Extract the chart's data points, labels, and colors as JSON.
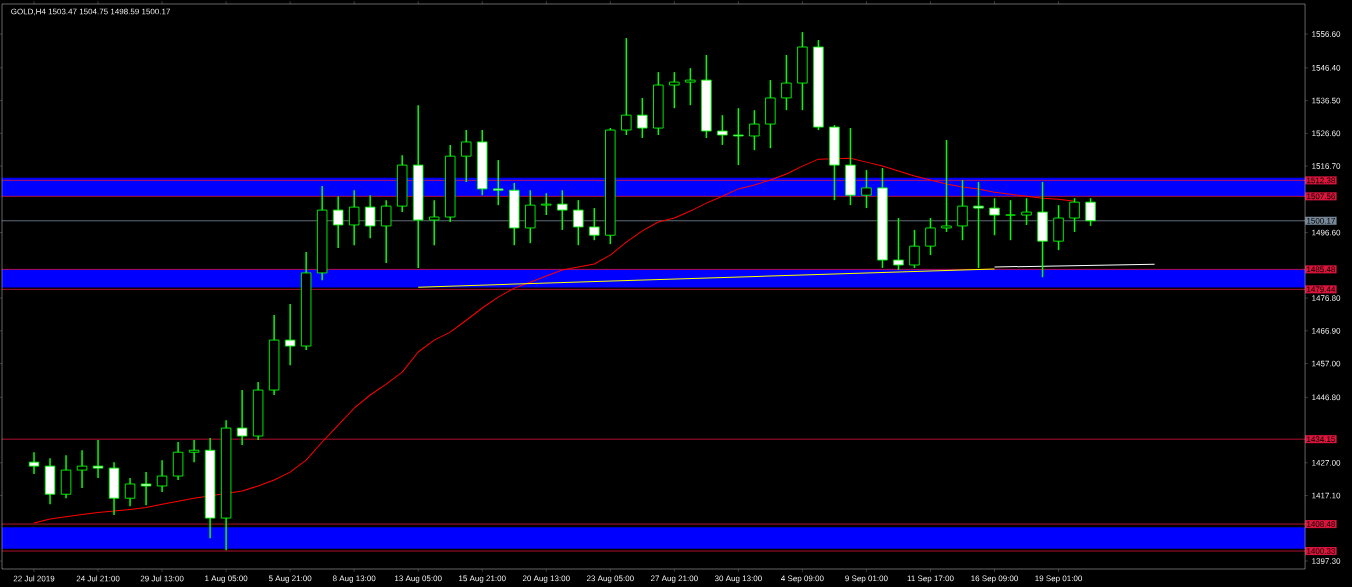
{
  "chart_data": {
    "type": "candlestick",
    "title": "GOLD,H4 1503.47 1504.75 1498.59 1500.17",
    "color": "#00ff00",
    "categories": [
      "22 Jul 2019",
      null,
      null,
      null,
      "24 Jul 21:00",
      null,
      null,
      null,
      "29 Jul 13:00",
      null,
      null,
      null,
      "1 Aug 05:00",
      null,
      null,
      null,
      "5 Aug 21:00",
      null,
      null,
      null,
      "8 Aug 13:00",
      null,
      null,
      null,
      "13 Aug 05:00",
      null,
      null,
      null,
      "15 Aug 21:00",
      null,
      null,
      null,
      "20 Aug 13:00",
      null,
      null,
      null,
      "23 Aug 05:00",
      null,
      null,
      null,
      "27 Aug 21:00",
      null,
      null,
      null,
      "30 Aug 13:00",
      null,
      null,
      null,
      "4 Sep 09:00",
      null,
      null,
      null,
      "9 Sep 01:00",
      null,
      null,
      null,
      "11 Sep 17:00",
      null,
      null,
      null,
      "16 Sep 09:00",
      null,
      null,
      null,
      "19 Sep 01:00",
      null,
      null,
      null,
      null,
      null,
      null,
      null,
      null,
      null,
      null,
      null,
      null,
      null,
      null
    ],
    "ohlc": [
      [
        1427.2,
        1430.2,
        1423.6,
        1426.0
      ],
      [
        1426.0,
        1428.4,
        1414.5,
        1417.5
      ],
      [
        1417.5,
        1429.3,
        1416.3,
        1424.8
      ],
      [
        1424.8,
        1430.8,
        1419.4,
        1426.0
      ],
      [
        1426.0,
        1433.9,
        1422.4,
        1425.4
      ],
      [
        1425.4,
        1427.2,
        1411.2,
        1416.3
      ],
      [
        1416.3,
        1422.4,
        1413.9,
        1420.6
      ],
      [
        1420.6,
        1424.2,
        1414.2,
        1420.0
      ],
      [
        1420.0,
        1427.8,
        1418.2,
        1423.0
      ],
      [
        1423.0,
        1433.3,
        1421.8,
        1430.2
      ],
      [
        1430.2,
        1433.9,
        1427.2,
        1430.8
      ],
      [
        1430.8,
        1434.5,
        1404.2,
        1410.3
      ],
      [
        1410.3,
        1439.9,
        1400.6,
        1437.5
      ],
      [
        1437.5,
        1449.0,
        1432.4,
        1435.1
      ],
      [
        1435.1,
        1451.4,
        1433.9,
        1449.0
      ],
      [
        1449.0,
        1471.7,
        1447.5,
        1464.1
      ],
      [
        1464.1,
        1475.0,
        1456.5,
        1462.3
      ],
      [
        1462.3,
        1490.7,
        1461.1,
        1484.4
      ],
      [
        1484.4,
        1510.7,
        1482.2,
        1503.4
      ],
      [
        1503.4,
        1507.6,
        1491.9,
        1498.9
      ],
      [
        1498.9,
        1509.4,
        1492.8,
        1504.3
      ],
      [
        1504.3,
        1507.9,
        1494.9,
        1498.6
      ],
      [
        1498.6,
        1506.4,
        1487.4,
        1504.6
      ],
      [
        1504.6,
        1520.0,
        1502.8,
        1517.0
      ],
      [
        1517.0,
        1535.1,
        1485.9,
        1500.4
      ],
      [
        1500.4,
        1506.4,
        1492.8,
        1501.3
      ],
      [
        1501.3,
        1523.1,
        1499.8,
        1519.7
      ],
      [
        1519.7,
        1527.6,
        1511.9,
        1524.0
      ],
      [
        1524.0,
        1527.6,
        1507.9,
        1509.8
      ],
      [
        1509.8,
        1518.5,
        1504.9,
        1509.4
      ],
      [
        1509.4,
        1511.6,
        1492.8,
        1498.0
      ],
      [
        1498.0,
        1509.4,
        1493.4,
        1504.9
      ],
      [
        1504.9,
        1508.5,
        1501.9,
        1505.2
      ],
      [
        1505.2,
        1509.4,
        1497.4,
        1503.4
      ],
      [
        1503.4,
        1506.4,
        1492.8,
        1498.3
      ],
      [
        1498.3,
        1504.0,
        1494.3,
        1495.8
      ],
      [
        1495.8,
        1528.2,
        1493.1,
        1527.6
      ],
      [
        1527.6,
        1555.4,
        1526.1,
        1532.1
      ],
      [
        1532.1,
        1537.3,
        1525.2,
        1528.2
      ],
      [
        1528.2,
        1545.1,
        1526.1,
        1541.2
      ],
      [
        1541.2,
        1545.1,
        1534.2,
        1542.1
      ],
      [
        1542.1,
        1546.3,
        1535.1,
        1542.7
      ],
      [
        1542.7,
        1550.3,
        1525.2,
        1527.3
      ],
      [
        1527.3,
        1532.1,
        1523.1,
        1526.1
      ],
      [
        1526.1,
        1534.2,
        1517.0,
        1525.8
      ],
      [
        1525.8,
        1533.6,
        1521.5,
        1529.4
      ],
      [
        1529.4,
        1542.7,
        1522.1,
        1537.3
      ],
      [
        1537.3,
        1550.3,
        1533.6,
        1541.8
      ],
      [
        1541.8,
        1557.2,
        1533.6,
        1552.7
      ],
      [
        1552.7,
        1554.8,
        1527.6,
        1528.5
      ],
      [
        1528.5,
        1529.1,
        1506.4,
        1517.0
      ],
      [
        1517.0,
        1528.2,
        1504.9,
        1507.9
      ],
      [
        1507.9,
        1515.5,
        1504.0,
        1510.1
      ],
      [
        1510.1,
        1516.1,
        1485.9,
        1488.3
      ],
      [
        1488.3,
        1501.0,
        1485.3,
        1486.8
      ],
      [
        1486.8,
        1497.4,
        1485.9,
        1492.5
      ],
      [
        1492.5,
        1501.0,
        1489.8,
        1498.0
      ],
      [
        1498.0,
        1524.6,
        1496.8,
        1498.6
      ],
      [
        1498.6,
        1512.5,
        1494.3,
        1504.6
      ],
      [
        1504.6,
        1511.9,
        1485.9,
        1504.0
      ],
      [
        1504.0,
        1507.0,
        1495.8,
        1501.9
      ],
      [
        1501.9,
        1506.4,
        1494.3,
        1501.9
      ],
      [
        1501.9,
        1507.0,
        1498.9,
        1502.8
      ],
      [
        1502.8,
        1511.9,
        1483.1,
        1494.0
      ],
      [
        1494.0,
        1504.9,
        1491.3,
        1501.0
      ],
      [
        1501.0,
        1507.0,
        1496.8,
        1505.8
      ],
      [
        1505.8,
        1507.0,
        1498.6,
        1500.17
      ],
      null,
      null,
      null,
      null,
      null,
      null,
      null,
      null,
      null,
      null,
      null,
      null
    ],
    "series": [
      {
        "type": "line",
        "color": "#ff0000",
        "values": [
          1408.8,
          1410.0,
          1410.7,
          1411.4,
          1412.0,
          1412.4,
          1412.9,
          1413.5,
          1414.5,
          1415.4,
          1416.3,
          null,
          null,
          1418.5,
          1420.0,
          1421.8,
          1424.2,
          1427.8,
          1433.3,
          1438.4,
          1443.5,
          1447.5,
          1450.8,
          1454.4,
          1460.5,
          1464.1,
          1466.5,
          1470.1,
          1473.8,
          1477.1,
          1479.8,
          1481.6,
          1483.5,
          1485.3,
          1486.2,
          1487.1,
          1489.8,
          1493.7,
          1497.1,
          1499.8,
          1501.0,
          1503.1,
          1505.5,
          1507.6,
          1509.8,
          1511.0,
          1512.5,
          1514.3,
          1516.7,
          1518.8,
          null,
          1519.1,
          1517.9,
          1516.7,
          1515.2,
          1513.7,
          1512.5,
          1511.3,
          1510.4,
          1509.8,
          1508.8,
          1508.2,
          1507.6,
          1507.0,
          1506.7,
          1506.1,
          null,
          null,
          null,
          null,
          null,
          null,
          null,
          null,
          null,
          null,
          null,
          null,
          null
        ]
      },
      {
        "type": "line",
        "color": "#ffff00",
        "values": [
          null,
          null,
          null,
          null,
          null,
          null,
          null,
          null,
          null,
          null,
          null,
          null,
          null,
          null,
          null,
          null,
          null,
          null,
          null,
          null,
          null,
          null,
          null,
          null,
          1480.1,
          null,
          null,
          null,
          null,
          null,
          null,
          null,
          null,
          null,
          null,
          null,
          null,
          null,
          null,
          null,
          null,
          null,
          null,
          null,
          null,
          null,
          null,
          null,
          null,
          null,
          null,
          null,
          null,
          null,
          null,
          null,
          null,
          null,
          null,
          null,
          1485.6,
          null,
          null,
          null,
          null,
          null,
          null,
          null,
          null,
          null,
          null,
          null,
          null,
          null,
          null,
          null,
          null,
          null,
          null
        ]
      },
      {
        "type": "line",
        "color": "#ffffff",
        "values": [
          null,
          null,
          null,
          null,
          null,
          null,
          null,
          null,
          null,
          null,
          null,
          null,
          null,
          null,
          null,
          null,
          null,
          null,
          null,
          null,
          null,
          null,
          null,
          null,
          null,
          null,
          null,
          null,
          null,
          null,
          null,
          null,
          null,
          null,
          null,
          null,
          null,
          null,
          null,
          null,
          null,
          null,
          null,
          null,
          null,
          null,
          null,
          null,
          null,
          null,
          null,
          null,
          null,
          null,
          null,
          null,
          null,
          null,
          null,
          null,
          1486.2,
          null,
          null,
          null,
          null,
          null,
          null,
          null,
          null,
          null,
          1487.0,
          null,
          null,
          null,
          null,
          null,
          null,
          null,
          null
        ]
      }
    ],
    "ylim": [
      1394.9,
      1565.7
    ],
    "yticks": [
      {
        "value": 1397.3,
        "label": "1397.30"
      },
      {
        "value": 1417.1,
        "label": "1417.10"
      },
      {
        "value": 1427.0,
        "label": "1427.00"
      },
      {
        "value": 1446.8,
        "label": "1446.80"
      },
      {
        "value": 1457.0,
        "label": "1457.00"
      },
      {
        "value": 1466.9,
        "label": "1466.90"
      },
      {
        "value": 1476.8,
        "label": "1476.80"
      },
      {
        "value": 1496.6,
        "label": "1496.60"
      },
      {
        "value": 1516.7,
        "label": "1516.70"
      },
      {
        "value": 1526.6,
        "label": "1526.60"
      },
      {
        "value": 1536.5,
        "label": "1536.50"
      },
      {
        "value": 1546.4,
        "label": "1546.40"
      },
      {
        "value": 1556.6,
        "label": "1556.60"
      }
    ],
    "bands": [
      {
        "axis": "y",
        "from": 1507.6,
        "to": 1513.2,
        "color": "#0000ff"
      },
      {
        "axis": "y",
        "from": 1480.0,
        "to": 1485.5,
        "color": "#0000ff"
      },
      {
        "axis": "y",
        "from": 1401.0,
        "to": 1407.5,
        "color": "#0000ff"
      }
    ],
    "ref_lines": [
      {
        "axis": "y",
        "value": 1512.38,
        "label": "1512.38",
        "color": "#dc143c"
      },
      {
        "axis": "y",
        "value": 1507.56,
        "label": "1507.56",
        "color": "#dc143c"
      },
      {
        "axis": "y",
        "value": 1500.17,
        "label": "1500.17",
        "color": "#778899"
      },
      {
        "axis": "y",
        "value": 1485.48,
        "label": "1485.48",
        "color": "#dc143c"
      },
      {
        "axis": "y",
        "value": 1479.44,
        "label": "1479.44",
        "color": "#dc143c"
      },
      {
        "axis": "y",
        "value": 1434.15,
        "label": "1434.15",
        "color": "#dc143c"
      },
      {
        "axis": "y",
        "value": 1408.48,
        "label": "1408.48",
        "color": "#dc143c"
      },
      {
        "axis": "y",
        "value": 1400.33,
        "label": "1400.33",
        "color": "#dc143c"
      }
    ]
  }
}
